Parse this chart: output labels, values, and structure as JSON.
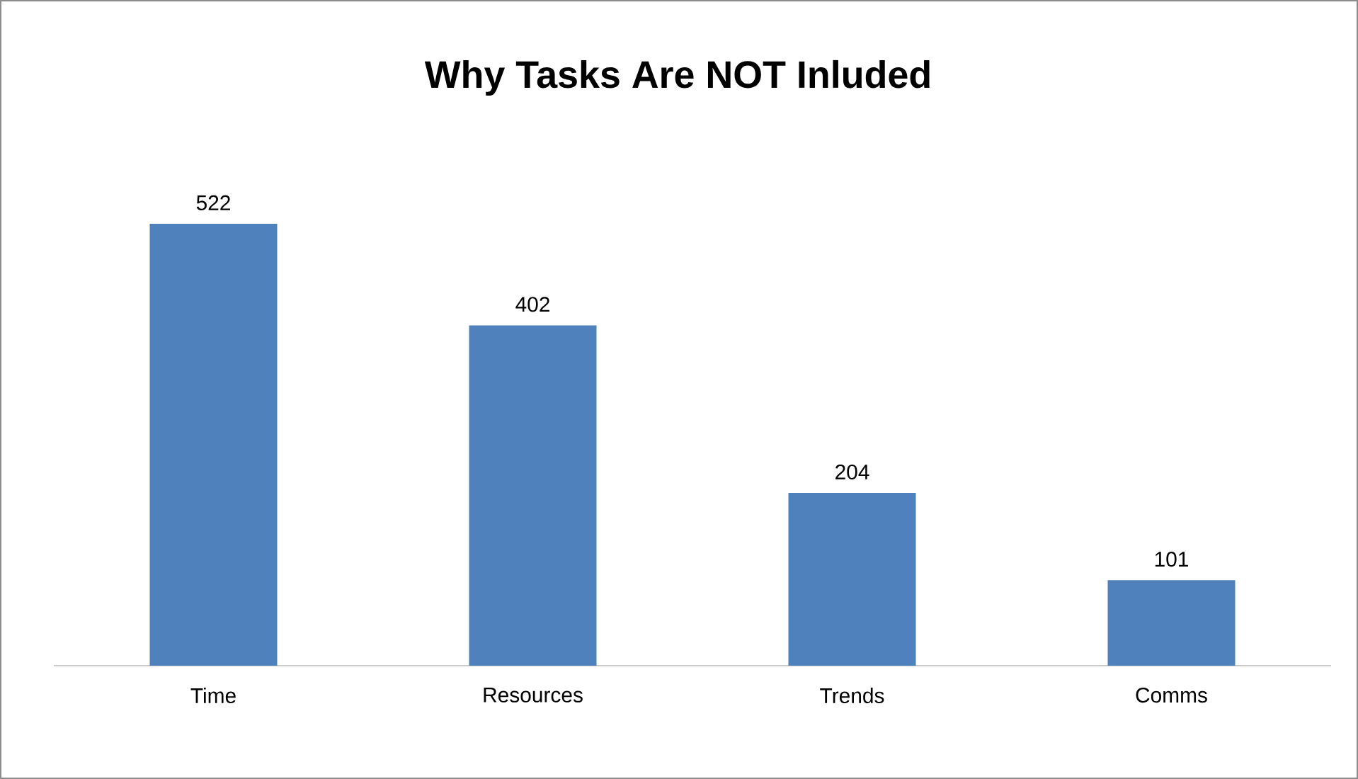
{
  "chart_data": {
    "type": "bar",
    "title": "Why Tasks Are NOT Inluded",
    "categories": [
      "Time",
      "Resources",
      "Trends",
      "Comms"
    ],
    "values": [
      522,
      402,
      204,
      101
    ],
    "color": "#4f81bd",
    "data_labels": true
  }
}
